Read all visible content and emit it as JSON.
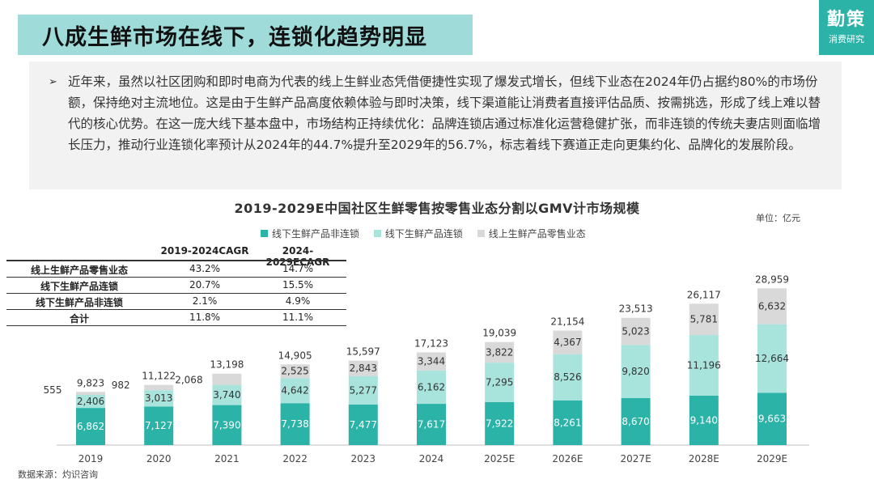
{
  "header": {
    "title": "八成生鲜市场在线下，连锁化趋势明显"
  },
  "logo": {
    "main": "勤策",
    "sub": "消费研究"
  },
  "summary": {
    "bullet": "➢",
    "text": "近年来，虽然以社区团购和即时电商为代表的线上生鲜业态凭借便捷性实现了爆发式增长，但线下业态在2024年仍占据约80%的市场份额，保持绝对主流地位。这是由于生鲜产品高度依赖体验与即时决策，线下渠道能让消费者直接评估品质、按需挑选，形成了线上难以替代的核心优势。在这一庞大线下基本盘中，市场结构正持续优化：品牌连锁店通过标准化运营稳健扩张，而非连锁的传统夫妻店则面临增长压力，推动行业连锁化率预计从2024年的44.7%提升至2029年的56.7%，标志着线下赛道正走向更集约化、品牌化的发展阶段。"
  },
  "source": "数据来源：灼识咨询",
  "cagr_table": {
    "headers": [
      "2019-2024CAGR",
      "2024-2029ECAGR"
    ],
    "rows": [
      {
        "name": "线上生鲜产品零售业态",
        "a": "43.2%",
        "b": "14.7%"
      },
      {
        "name": "线下生鲜产品连锁",
        "a": "20.7%",
        "b": "15.5%"
      },
      {
        "name": "线下生鲜产品非连锁",
        "a": "2.1%",
        "b": "4.9%"
      },
      {
        "name": "合计",
        "a": "11.8%",
        "b": "11.1%"
      }
    ]
  },
  "colors": {
    "nonchain": "#2bb3a8",
    "chain": "#a8e3dc",
    "online": "#d9d9d9",
    "banner": "#9fdcd9",
    "logo": "#2bb3a8"
  },
  "chart_data": {
    "type": "bar",
    "stacked": true,
    "title": "2019-2029E中国社区生鲜零售按零售业态分割以GMV计市场规模",
    "unit": "单位：亿元",
    "legend_position": "top",
    "categories": [
      "2019",
      "2020",
      "2021",
      "2022",
      "2023",
      "2024",
      "2025E",
      "2026E",
      "2027E",
      "2028E",
      "2029E"
    ],
    "series": [
      {
        "name": "线下生鲜产品非连锁",
        "color": "#2bb3a8",
        "values": [
          6862,
          7127,
          7390,
          7738,
          7477,
          7617,
          7922,
          8261,
          8670,
          9140,
          9663
        ]
      },
      {
        "name": "线下生鲜产品连锁",
        "color": "#a8e3dc",
        "values": [
          2406,
          3013,
          3740,
          4642,
          5277,
          6162,
          7295,
          8526,
          9820,
          11196,
          12664
        ]
      },
      {
        "name": "线上生鲜产品零售业态",
        "color": "#d9d9d9",
        "values": [
          555,
          982,
          2068,
          2525,
          2843,
          3344,
          3822,
          4367,
          5023,
          5781,
          6632
        ]
      }
    ],
    "legend_labels": [
      "线下生鲜产品非连锁",
      "线下生鲜产品连锁",
      "线上生鲜产品零售业态"
    ],
    "segment_labels": [
      [
        "6,862",
        "2,406",
        "555"
      ],
      [
        "7,127",
        "3,013",
        "982"
      ],
      [
        "7,390",
        "3,740",
        "2,068"
      ],
      [
        "7,738",
        "4,642",
        "2,525"
      ],
      [
        "7,477",
        "5,277",
        "2,843"
      ],
      [
        "7,617",
        "6,162",
        "3,344"
      ],
      [
        "7,922",
        "7,295",
        "3,822"
      ],
      [
        "8,261",
        "8,526",
        "4,367"
      ],
      [
        "8,670",
        "9,820",
        "5,023"
      ],
      [
        "9,140",
        "11,196",
        "5,781"
      ],
      [
        "9,663",
        "12,664",
        "6,632"
      ]
    ],
    "totals": [
      9823,
      11122,
      13198,
      14905,
      15597,
      17123,
      19039,
      21154,
      23513,
      26117,
      28959
    ],
    "total_labels": [
      "9,823",
      "11,122",
      "13,198",
      "14,905",
      "15,597",
      "17,123",
      "19,039",
      "21,154",
      "23,513",
      "26,117",
      "28,959"
    ],
    "ylim": [
      0,
      29000
    ]
  }
}
